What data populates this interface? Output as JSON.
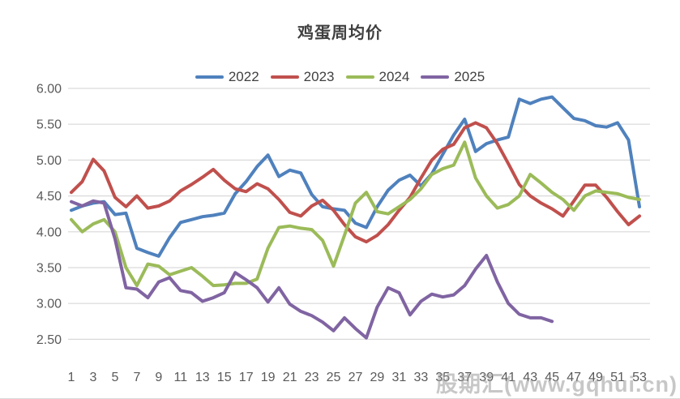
{
  "title": "鸡蛋周均价",
  "watermark": "股期汇(www.gqhui.cn)",
  "chart_data": {
    "type": "line",
    "title": "鸡蛋周均价",
    "xlabel": "",
    "ylabel": "",
    "ylim": [
      2.5,
      6.0
    ],
    "ytick_step": 0.5,
    "yticks": [
      "6.00",
      "5.50",
      "5.00",
      "4.50",
      "4.00",
      "3.50",
      "3.00",
      "2.50"
    ],
    "xticks": [
      1,
      3,
      5,
      7,
      9,
      11,
      13,
      15,
      17,
      19,
      21,
      23,
      25,
      27,
      29,
      31,
      33,
      35,
      37,
      39,
      41,
      43,
      45,
      47,
      49,
      51,
      53
    ],
    "x_weeks": 53,
    "grid": true,
    "gridline_color": "#d9d9d9",
    "legend_position": "top",
    "series": [
      {
        "name": "2022",
        "color": "#4F81BD",
        "start_week": 1,
        "values": [
          4.3,
          4.36,
          4.4,
          4.42,
          4.24,
          4.26,
          3.77,
          3.71,
          3.66,
          3.92,
          4.13,
          4.17,
          4.21,
          4.23,
          4.26,
          4.53,
          4.7,
          4.91,
          5.07,
          4.77,
          4.86,
          4.82,
          4.52,
          4.35,
          4.32,
          4.3,
          4.12,
          4.06,
          4.35,
          4.58,
          4.72,
          4.79,
          4.64,
          4.81,
          5.08,
          5.35,
          5.57,
          5.12,
          5.23,
          5.28,
          5.32,
          5.85,
          5.79,
          5.85,
          5.88,
          5.73,
          5.58,
          5.55,
          5.48,
          5.46,
          5.52,
          5.28,
          4.35
        ]
      },
      {
        "name": "2023",
        "color": "#C0504D",
        "start_week": 1,
        "values": [
          4.55,
          4.7,
          5.01,
          4.85,
          4.48,
          4.35,
          4.5,
          4.33,
          4.36,
          4.43,
          4.57,
          4.66,
          4.76,
          4.87,
          4.72,
          4.6,
          4.56,
          4.67,
          4.6,
          4.45,
          4.27,
          4.22,
          4.36,
          4.44,
          4.3,
          4.1,
          3.93,
          3.86,
          3.95,
          4.1,
          4.3,
          4.48,
          4.75,
          5.0,
          5.15,
          5.22,
          5.45,
          5.52,
          5.45,
          5.23,
          4.95,
          4.66,
          4.5,
          4.4,
          4.32,
          4.22,
          4.43,
          4.65,
          4.65,
          4.48,
          4.28,
          4.1,
          4.22
        ]
      },
      {
        "name": "2024",
        "color": "#9BBB59",
        "start_week": 1,
        "values": [
          4.17,
          4.0,
          4.11,
          4.17,
          4.0,
          3.5,
          3.25,
          3.55,
          3.52,
          3.4,
          3.45,
          3.5,
          3.38,
          3.25,
          3.26,
          3.28,
          3.28,
          3.34,
          3.77,
          4.06,
          4.08,
          4.05,
          4.03,
          3.88,
          3.52,
          3.95,
          4.4,
          4.55,
          4.28,
          4.25,
          4.35,
          4.45,
          4.6,
          4.8,
          4.88,
          4.93,
          5.25,
          4.75,
          4.5,
          4.33,
          4.38,
          4.5,
          4.8,
          4.68,
          4.55,
          4.45,
          4.3,
          4.5,
          4.57,
          4.55,
          4.53,
          4.48,
          4.45
        ]
      },
      {
        "name": "2025",
        "color": "#8064A2",
        "start_week": 1,
        "values": [
          4.42,
          4.36,
          4.43,
          4.4,
          3.9,
          3.22,
          3.2,
          3.08,
          3.3,
          3.36,
          3.18,
          3.15,
          3.03,
          3.08,
          3.15,
          3.43,
          3.33,
          3.22,
          3.02,
          3.22,
          2.99,
          2.89,
          2.83,
          2.74,
          2.62,
          2.8,
          2.65,
          2.52,
          2.95,
          3.22,
          3.15,
          2.84,
          3.03,
          3.13,
          3.09,
          3.12,
          3.25,
          3.48,
          3.67,
          3.3,
          3.0,
          2.85,
          2.8,
          2.8,
          2.75
        ]
      }
    ]
  }
}
